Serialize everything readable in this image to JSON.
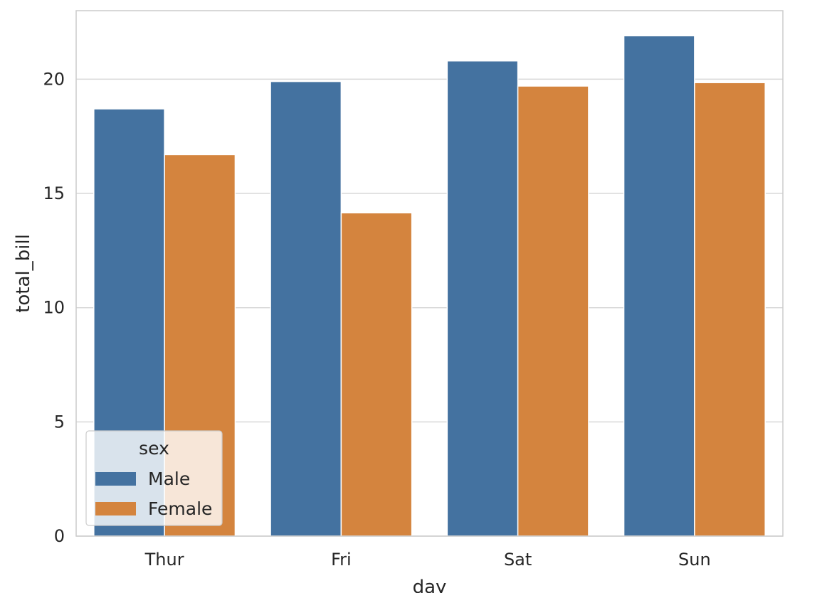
{
  "chart_data": {
    "type": "bar",
    "categories": [
      "Thur",
      "Fri",
      "Sat",
      "Sun"
    ],
    "series": [
      {
        "name": "Male",
        "values": [
          18.7,
          19.9,
          20.8,
          21.9
        ],
        "color": "#4472a0"
      },
      {
        "name": "Female",
        "values": [
          16.7,
          14.15,
          19.7,
          19.85
        ],
        "color": "#d4843e"
      }
    ],
    "xlabel": "day",
    "ylabel": "total_bill",
    "ylim": [
      0,
      23
    ],
    "yticks": [
      0,
      5,
      10,
      15,
      20
    ],
    "grid": true,
    "legend": {
      "title": "sex",
      "position": "lower-left"
    }
  }
}
